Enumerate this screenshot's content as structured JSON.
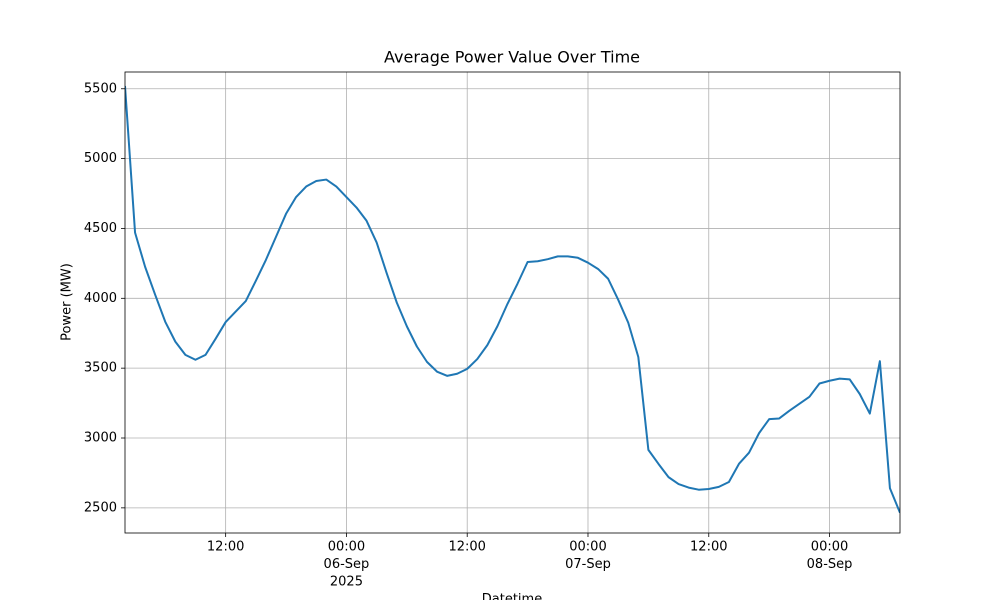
{
  "chart_data": {
    "type": "line",
    "title": "Average Power Value Over Time",
    "x_label": "Datetime",
    "y_label": "Power (MW)",
    "x": [
      "2025-09-05 02:00",
      "2025-09-05 03:00",
      "2025-09-05 04:00",
      "2025-09-05 05:00",
      "2025-09-05 06:00",
      "2025-09-05 07:00",
      "2025-09-05 08:00",
      "2025-09-05 09:00",
      "2025-09-05 10:00",
      "2025-09-05 11:00",
      "2025-09-05 12:00",
      "2025-09-05 13:00",
      "2025-09-05 14:00",
      "2025-09-05 15:00",
      "2025-09-05 16:00",
      "2025-09-05 17:00",
      "2025-09-05 18:00",
      "2025-09-05 19:00",
      "2025-09-05 20:00",
      "2025-09-05 21:00",
      "2025-09-05 22:00",
      "2025-09-05 23:00",
      "2025-09-06 00:00",
      "2025-09-06 01:00",
      "2025-09-06 02:00",
      "2025-09-06 03:00",
      "2025-09-06 04:00",
      "2025-09-06 05:00",
      "2025-09-06 06:00",
      "2025-09-06 07:00",
      "2025-09-06 08:00",
      "2025-09-06 09:00",
      "2025-09-06 10:00",
      "2025-09-06 11:00",
      "2025-09-06 12:00",
      "2025-09-06 13:00",
      "2025-09-06 14:00",
      "2025-09-06 15:00",
      "2025-09-06 16:00",
      "2025-09-06 17:00",
      "2025-09-06 18:00",
      "2025-09-06 19:00",
      "2025-09-06 20:00",
      "2025-09-06 21:00",
      "2025-09-06 22:00",
      "2025-09-06 23:00",
      "2025-09-07 00:00",
      "2025-09-07 01:00",
      "2025-09-07 02:00",
      "2025-09-07 03:00",
      "2025-09-07 04:00",
      "2025-09-07 05:00",
      "2025-09-07 06:00",
      "2025-09-07 07:00",
      "2025-09-07 08:00",
      "2025-09-07 09:00",
      "2025-09-07 10:00",
      "2025-09-07 11:00",
      "2025-09-07 12:00",
      "2025-09-07 13:00",
      "2025-09-07 14:00",
      "2025-09-07 15:00",
      "2025-09-07 16:00",
      "2025-09-07 17:00",
      "2025-09-07 18:00",
      "2025-09-07 19:00",
      "2025-09-07 20:00",
      "2025-09-07 21:00",
      "2025-09-07 22:00",
      "2025-09-07 23:00",
      "2025-09-08 00:00",
      "2025-09-08 01:00",
      "2025-09-08 02:00",
      "2025-09-08 03:00",
      "2025-09-08 04:00",
      "2025-09-08 05:00",
      "2025-09-08 06:00",
      "2025-09-08 07:00"
    ],
    "series": [
      {
        "name": "Power",
        "color": "#1f77b4",
        "values": [
          5520,
          4470,
          4225,
          4025,
          3832,
          3690,
          3595,
          3560,
          3595,
          3710,
          3830,
          3905,
          3980,
          4125,
          4275,
          4440,
          4605,
          4725,
          4800,
          4840,
          4850,
          4800,
          4725,
          4650,
          4555,
          4400,
          4180,
          3970,
          3800,
          3655,
          3545,
          3475,
          3445,
          3460,
          3495,
          3565,
          3665,
          3800,
          3960,
          4105,
          4260,
          4265,
          4280,
          4300,
          4300,
          4290,
          4255,
          4210,
          4140,
          3990,
          3825,
          3580,
          2915,
          2815,
          2720,
          2670,
          2645,
          2630,
          2635,
          2650,
          2685,
          2815,
          2895,
          3035,
          3135,
          3140,
          3195,
          3245,
          3295,
          3390,
          3410,
          3425,
          3420,
          3315,
          3175,
          3550,
          2640,
          2465
        ]
      }
    ],
    "xlim": [
      "2025-09-05 02:00",
      "2025-09-08 07:00"
    ],
    "xticks": [
      {
        "value": "2025-09-05 12:00",
        "label": [
          "12:00"
        ]
      },
      {
        "value": "2025-09-06 00:00",
        "label": [
          "00:00",
          "06-Sep",
          "2025"
        ]
      },
      {
        "value": "2025-09-06 12:00",
        "label": [
          "12:00"
        ]
      },
      {
        "value": "2025-09-07 00:00",
        "label": [
          "00:00",
          "07-Sep"
        ]
      },
      {
        "value": "2025-09-07 12:00",
        "label": [
          "12:00"
        ]
      },
      {
        "value": "2025-09-08 00:00",
        "label": [
          "00:00",
          "08-Sep"
        ]
      }
    ],
    "ylim": [
      2320,
      5620
    ],
    "yticks": [
      2500,
      3000,
      3500,
      4000,
      4500,
      5000,
      5500
    ],
    "grid": true
  }
}
